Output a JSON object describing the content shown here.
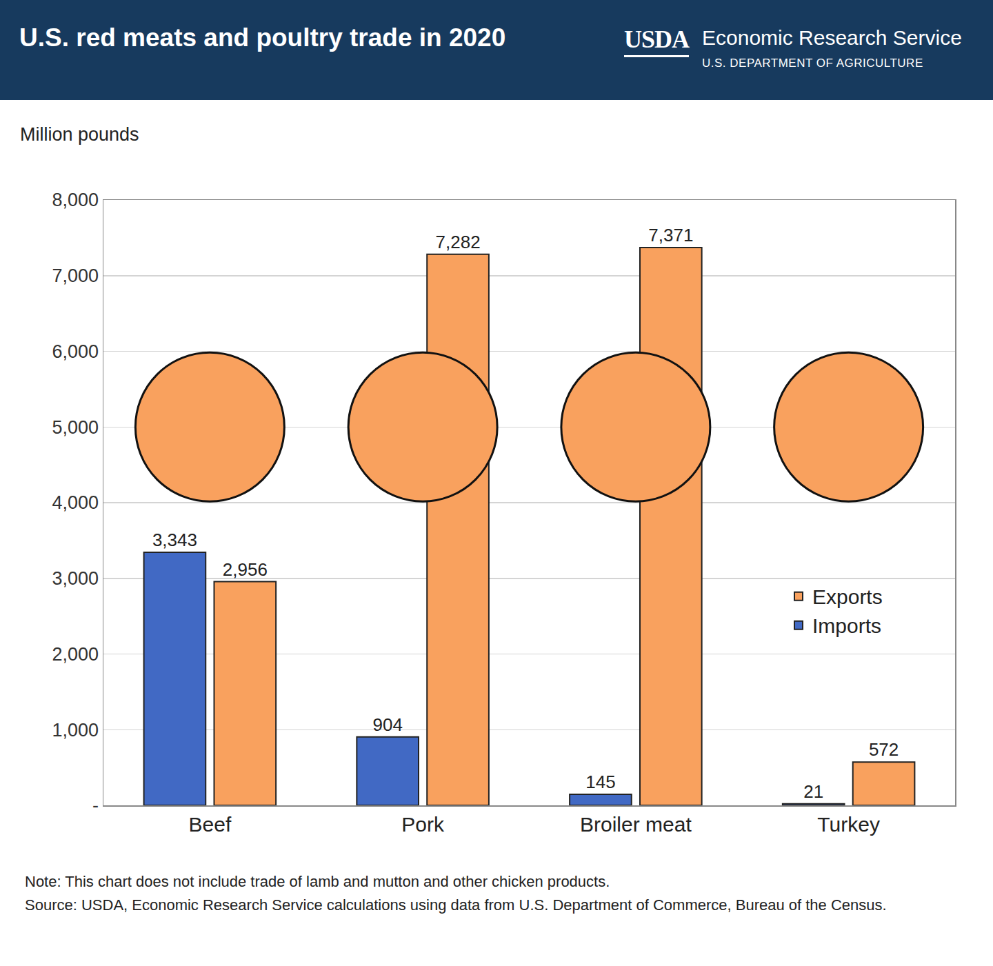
{
  "header": {
    "logo": "USDA",
    "organization": "Economic Research Service",
    "department": "U.S. DEPARTMENT OF AGRICULTURE"
  },
  "chart_data": {
    "type": "bar",
    "title": "U.S. red meats and poultry trade in 2020",
    "y_label": "Million pounds",
    "categories": [
      "Beef",
      "Pork",
      "Broiler meat",
      "Turkey"
    ],
    "series": [
      {
        "name": "Imports",
        "color": "#4169c4",
        "values": [
          3343,
          904,
          145,
          21
        ],
        "value_labels": [
          "3,343",
          "904",
          "145",
          "21"
        ]
      },
      {
        "name": "Exports",
        "color": "#f9a15e",
        "values": [
          2956,
          7282,
          7371,
          572
        ],
        "value_labels": [
          "2,956",
          "7,282",
          "7,371",
          "572"
        ]
      }
    ],
    "ylim": [
      0,
      8000
    ],
    "yticks": [
      {
        "value": 0,
        "label": "-"
      },
      {
        "value": 1000,
        "label": "1,000"
      },
      {
        "value": 2000,
        "label": "2,000"
      },
      {
        "value": 3000,
        "label": "3,000"
      },
      {
        "value": 4000,
        "label": "4,000"
      },
      {
        "value": 5000,
        "label": "5,000"
      },
      {
        "value": 6000,
        "label": "6,000"
      },
      {
        "value": 7000,
        "label": "7,000"
      },
      {
        "value": 8000,
        "label": "8,000"
      }
    ],
    "grid": true,
    "legend": "right",
    "data_labels": true
  },
  "notes": [
    "Note: This chart does not include trade of lamb and mutton and other chicken products.",
    "Source: USDA, Economic Research Service calculations using data from U.S. Department of Commerce, Bureau of the Census."
  ]
}
